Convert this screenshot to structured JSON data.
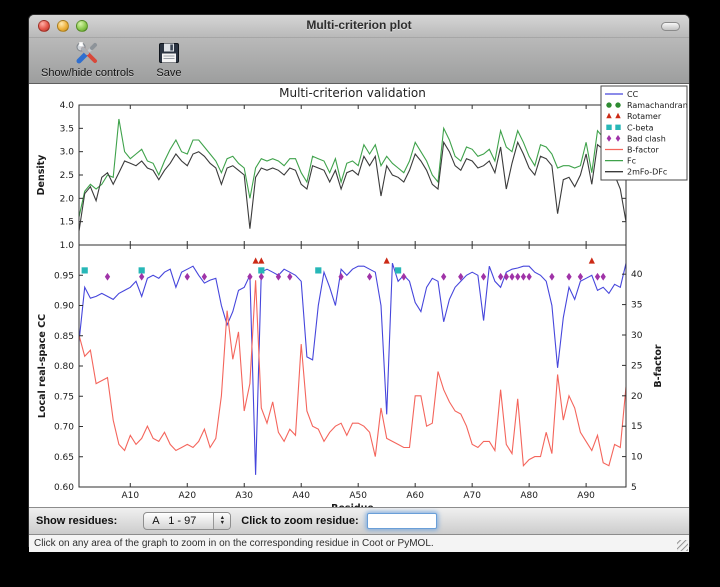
{
  "window": {
    "title": "Multi-criterion plot",
    "toolbar": {
      "buttons": [
        {
          "label": "Show/hide controls",
          "icon": "tools-icon"
        },
        {
          "label": "Save",
          "icon": "save-icon"
        }
      ]
    },
    "controls": {
      "show_residues_label": "Show residues:",
      "residue_range_value": "A   1 - 97",
      "zoom_residue_label": "Click to zoom residue:",
      "zoom_residue_input_value": ""
    },
    "status_bar": "Click on any area of the graph to zoom in on the corresponding residue in Coot or PyMOL."
  },
  "chart_data": {
    "type": "line",
    "title": "Multi-criterion validation",
    "xlabel": "Residue",
    "xlim": [
      1,
      97
    ],
    "x_tick_values": [
      10,
      20,
      30,
      40,
      50,
      60,
      70,
      80,
      90
    ],
    "x_tick_labels": [
      "A10",
      "A20",
      "A30",
      "A40",
      "A50",
      "A60",
      "A70",
      "A80",
      "A90"
    ],
    "panels": [
      {
        "ylabel": "Density",
        "ylim": [
          1.0,
          4.0
        ],
        "yticks": [
          4.0,
          3.5,
          3.0,
          2.5,
          2.0,
          1.5,
          1.0
        ],
        "series": [
          {
            "name": "Fc",
            "color": "#3fa24b",
            "values": [
              1.6,
              2.15,
              2.3,
              2.2,
              2.3,
              2.5,
              2.45,
              3.7,
              3.0,
              2.85,
              2.95,
              3.05,
              2.8,
              2.75,
              2.5,
              2.8,
              3.05,
              3.25,
              3.0,
              2.95,
              3.25,
              3.25,
              3.1,
              2.95,
              2.8,
              2.55,
              2.85,
              2.9,
              2.75,
              2.65,
              2.0,
              2.65,
              2.85,
              2.8,
              2.85,
              2.8,
              2.7,
              2.85,
              2.85,
              2.55,
              2.35,
              2.9,
              2.85,
              2.8,
              2.55,
              2.85,
              2.35,
              2.75,
              2.8,
              2.7,
              3.15,
              2.95,
              3.15,
              2.7,
              2.9,
              2.75,
              2.65,
              2.55,
              2.8,
              3.2,
              3.0,
              2.8,
              2.5,
              2.35,
              3.5,
              3.25,
              2.9,
              2.8,
              3.1,
              3.05,
              2.9,
              2.95,
              3.05,
              2.8,
              3.45,
              3.1,
              3.0,
              3.45,
              3.2,
              2.9,
              2.7,
              3.15,
              3.1,
              2.95,
              2.65,
              2.7,
              2.7,
              2.65,
              2.7,
              3.2,
              2.55,
              3.45,
              3.3,
              2.95,
              2.7,
              2.55,
              3.05
            ]
          },
          {
            "name": "2mFo-DFc",
            "color": "#3b3b3b",
            "values": [
              1.3,
              2.1,
              2.25,
              1.95,
              2.45,
              2.55,
              2.3,
              2.55,
              2.8,
              2.75,
              2.7,
              2.8,
              2.65,
              2.6,
              2.4,
              2.6,
              2.75,
              2.95,
              2.8,
              2.7,
              2.95,
              3.0,
              2.9,
              2.75,
              2.65,
              2.3,
              2.65,
              2.7,
              2.6,
              2.5,
              1.35,
              2.45,
              2.65,
              2.6,
              2.65,
              2.6,
              2.5,
              2.65,
              2.6,
              2.3,
              2.2,
              2.7,
              2.65,
              2.6,
              2.35,
              2.6,
              2.2,
              2.55,
              2.6,
              2.5,
              2.9,
              2.7,
              2.9,
              2.05,
              2.7,
              2.5,
              2.45,
              2.35,
              2.6,
              2.95,
              2.8,
              2.6,
              2.3,
              2.2,
              3.2,
              3.0,
              2.7,
              2.6,
              2.85,
              2.8,
              2.65,
              2.7,
              2.8,
              2.55,
              3.1,
              2.2,
              2.75,
              3.2,
              2.95,
              2.65,
              2.5,
              2.9,
              2.85,
              2.7,
              1.67,
              2.4,
              2.45,
              2.25,
              2.5,
              2.95,
              2.3,
              3.15,
              3.05,
              2.7,
              2.5,
              2.2,
              1.5
            ]
          }
        ]
      },
      {
        "ylabel": "Local real-space CC",
        "ylim": [
          0.6,
          1.0
        ],
        "yticks": [
          0.95,
          0.9,
          0.85,
          0.8,
          0.75,
          0.7,
          0.65,
          0.6
        ],
        "ylabel_right": "B-factor",
        "ylim_right": [
          5,
          44.8
        ],
        "yticks_right": [
          40,
          35,
          30,
          25,
          20,
          15,
          10,
          5
        ],
        "series": [
          {
            "name": "CC",
            "axis": "left",
            "color": "#4646dc",
            "values": [
              0.84,
              0.93,
              0.912,
              0.915,
              0.92,
              0.915,
              0.91,
              0.92,
              0.925,
              0.93,
              0.94,
              0.915,
              0.945,
              0.95,
              0.945,
              0.955,
              0.96,
              0.93,
              0.955,
              0.96,
              0.965,
              0.95,
              0.937,
              0.942,
              0.945,
              0.9,
              0.868,
              0.89,
              0.925,
              0.93,
              0.95,
              0.62,
              0.955,
              0.96,
              0.955,
              0.95,
              0.96,
              0.955,
              0.95,
              0.94,
              0.815,
              0.81,
              0.9,
              0.955,
              0.93,
              0.9,
              0.96,
              0.95,
              0.96,
              0.965,
              0.965,
              0.96,
              0.955,
              0.9,
              0.72,
              0.97,
              0.94,
              0.95,
              0.94,
              0.905,
              0.89,
              0.93,
              0.945,
              0.94,
              0.873,
              0.91,
              0.93,
              0.94,
              0.95,
              0.955,
              0.95,
              0.875,
              0.965,
              0.94,
              0.93,
              0.955,
              0.96,
              0.962,
              0.965,
              0.965,
              0.955,
              0.95,
              0.94,
              0.9,
              0.797,
              0.88,
              0.93,
              0.91,
              0.94,
              0.945,
              0.95,
              0.925,
              0.93,
              0.92,
              0.935,
              0.93,
              0.97
            ]
          },
          {
            "name": "B-factor",
            "axis": "right",
            "color": "#f4655c",
            "values": [
              30.0,
              26.5,
              27.5,
              22.0,
              22.5,
              23.0,
              16.0,
              12.0,
              11.0,
              13.5,
              12.0,
              13.0,
              15.0,
              13.0,
              12.5,
              14.0,
              12.0,
              11.0,
              11.5,
              12.0,
              11.5,
              12.5,
              14.5,
              11.5,
              13.0,
              20.0,
              34.0,
              26.0,
              30.5,
              17.5,
              22.0,
              39.0,
              18.0,
              15.5,
              19.0,
              14.0,
              12.5,
              14.5,
              13.5,
              28.5,
              17.5,
              15.0,
              14.5,
              12.5,
              14.0,
              15.0,
              15.5,
              13.5,
              15.5,
              15.5,
              15.0,
              14.0,
              10.0,
              18.0,
              13.0,
              12.5,
              12.0,
              11.5,
              11.5,
              20.0,
              20.0,
              15.0,
              15.5,
              24.0,
              21.0,
              19.0,
              17.5,
              17.0,
              15.0,
              12.0,
              11.5,
              12.5,
              12.5,
              11.0,
              21.0,
              12.0,
              10.5,
              19.5,
              8.5,
              9.5,
              10.0,
              10.0,
              14.0,
              10.5,
              23.5,
              16.0,
              20.0,
              18.0,
              14.0,
              12.5,
              11.0,
              13.5,
              9.0,
              8.5,
              12.0,
              11.5,
              21.5
            ]
          }
        ],
        "markers": [
          {
            "name": "Ramachandran",
            "shape": "circle",
            "color": "#2e8b32",
            "y": 0.985,
            "residues": []
          },
          {
            "name": "Rotamer",
            "shape": "triangle",
            "color": "#cc2a16",
            "y": 0.973,
            "residues": [
              32,
              33,
              55,
              91
            ]
          },
          {
            "name": "C-beta",
            "shape": "square",
            "color": "#27b7b7",
            "y": 0.958,
            "residues": [
              2,
              12,
              33,
              43,
              57
            ]
          },
          {
            "name": "Bad clash",
            "shape": "diamond",
            "color": "#a033a8",
            "y": 0.9475,
            "residues": [
              6,
              12,
              20,
              23,
              31,
              33,
              36,
              38,
              47,
              52,
              58,
              65,
              68,
              72,
              75,
              76,
              77,
              78,
              79,
              80,
              84,
              87,
              89,
              92,
              93
            ]
          }
        ]
      }
    ],
    "legend": {
      "position": "upper right",
      "entries": [
        {
          "label": "CC",
          "sample": "line",
          "color": "#4646dc"
        },
        {
          "label": "Ramachandran",
          "sample": "circle",
          "color": "#2e8b32"
        },
        {
          "label": "Rotamer",
          "sample": "triangle",
          "color": "#cc2a16"
        },
        {
          "label": "C-beta",
          "sample": "square",
          "color": "#27b7b7"
        },
        {
          "label": "Bad clash",
          "sample": "diamond",
          "color": "#a033a8"
        },
        {
          "label": "B-factor",
          "sample": "line",
          "color": "#f4655c"
        },
        {
          "label": "Fc",
          "sample": "line",
          "color": "#3fa24b"
        },
        {
          "label": "2mFo-DFc",
          "sample": "line",
          "color": "#3b3b3b"
        }
      ]
    }
  }
}
